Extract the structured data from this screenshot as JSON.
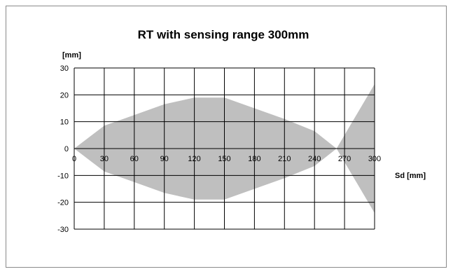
{
  "chart_data": {
    "type": "area",
    "title": "RT with sensing range 300mm",
    "ylabel": "[mm]",
    "xlabel": "Sd [mm]",
    "xlim": [
      0,
      300
    ],
    "ylim": [
      -30,
      30
    ],
    "grid": true,
    "x_ticks": [
      0,
      30,
      60,
      90,
      120,
      150,
      180,
      210,
      240,
      270,
      300
    ],
    "y_ticks": [
      30,
      20,
      10,
      0,
      -10,
      -20,
      -30
    ],
    "fill_color": "#bfbfbf",
    "grid_color": "#000000",
    "series": [
      {
        "points": [
          [
            0,
            0
          ],
          [
            30,
            8.5
          ],
          [
            60,
            12.5
          ],
          [
            90,
            16.5
          ],
          [
            120,
            19
          ],
          [
            150,
            19
          ],
          [
            180,
            15
          ],
          [
            210,
            11
          ],
          [
            240,
            6.5
          ],
          [
            262,
            0
          ],
          [
            240,
            -6.5
          ],
          [
            210,
            -11
          ],
          [
            180,
            -15
          ],
          [
            150,
            -19
          ],
          [
            120,
            -19
          ],
          [
            90,
            -16.5
          ],
          [
            60,
            -12.5
          ],
          [
            30,
            -8.5
          ]
        ]
      },
      {
        "points": [
          [
            262,
            0
          ],
          [
            300,
            24
          ],
          [
            300,
            -24
          ]
        ]
      }
    ]
  }
}
